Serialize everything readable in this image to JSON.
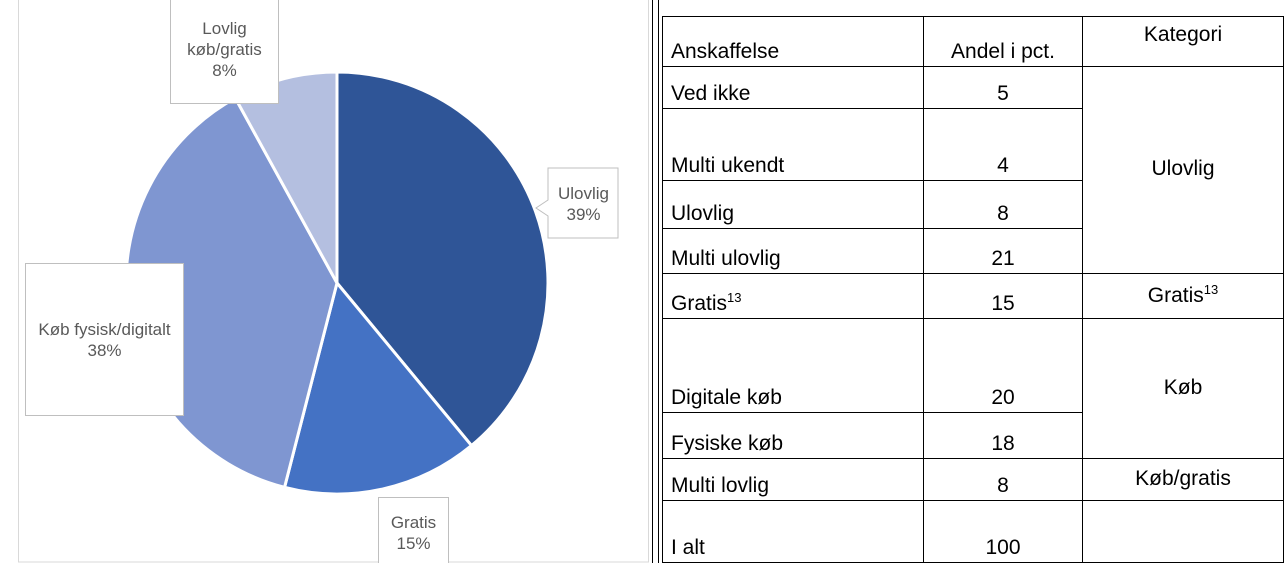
{
  "chart_data": {
    "type": "pie",
    "categories": [
      "Ulovlig",
      "Gratis",
      "Køb fysisk/digitalt",
      "Lovlig køb/gratis"
    ],
    "values": [
      39,
      15,
      38,
      8
    ],
    "value_labels": [
      "39%",
      "15%",
      "38%",
      "8%"
    ],
    "colors": [
      "#2f5597",
      "#4472c4",
      "#7f96d1",
      "#b4bfe0"
    ]
  },
  "table": {
    "header": [
      "Anskaffelse",
      "Andel i pct.",
      "Kategori"
    ],
    "rows": [
      [
        "Ved ikke",
        5,
        "Ulovlig"
      ],
      [
        "Multi ukendt",
        4,
        null
      ],
      [
        "Ulovlig",
        8,
        null
      ],
      [
        "Multi ulovlig",
        21,
        null
      ],
      [
        {
          "text": "Gratis",
          "sup": "13"
        },
        15,
        {
          "text": "Gratis",
          "sup": "13"
        }
      ],
      [
        "Digitale køb",
        20,
        "Køb"
      ],
      [
        "Fysiske køb",
        18,
        null
      ],
      [
        "Multi lovlig",
        8,
        "Køb/gratis"
      ],
      [
        "I alt",
        100
      ]
    ]
  }
}
